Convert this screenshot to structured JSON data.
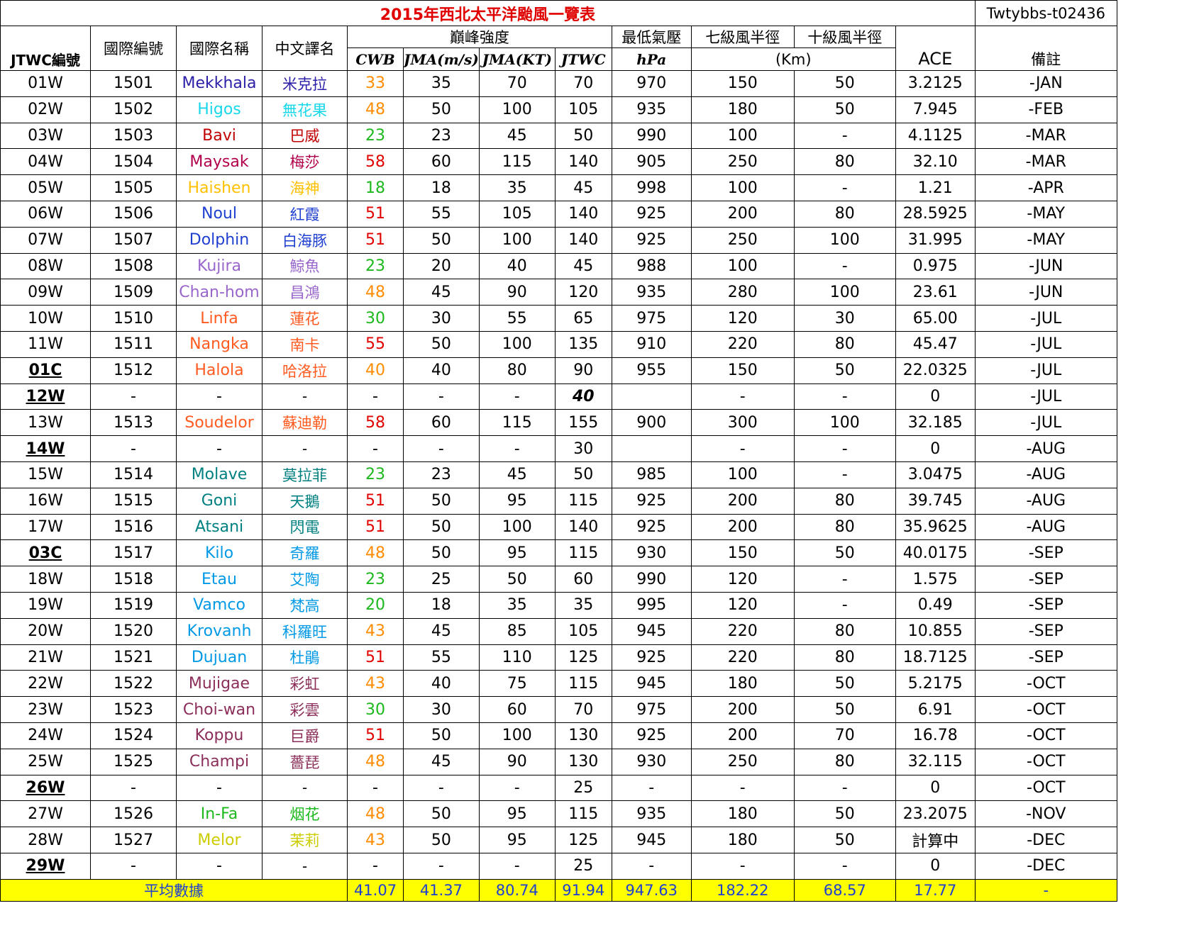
{
  "title": "2015年西北太平洋颱風一覽表",
  "credit": "Twtybbs-t02436",
  "headers": {
    "jtwc_no": "JTWC編號",
    "intl_no": "國際編號",
    "intl_name": "國際名稱",
    "cn_name": "中文譯名",
    "peak": "巔峰強度",
    "cwb": "CWB",
    "jma_ms": "JMA(m/s)",
    "jma_kt": "JMA(KT)",
    "jtwc": "JTWC",
    "min_pressure": "最低氣壓",
    "hpa": "hPa",
    "r7": "七級風半徑",
    "r10": "十級風半徑",
    "km": "(Km)",
    "ace": "ACE",
    "remark": "備註"
  },
  "storms": [
    {
      "jtwc": "01W",
      "intl": "1501",
      "name": "Mekkhala",
      "cn": "米克拉",
      "color": "#2b1fa8",
      "cwb": "33",
      "cwb_color": "#ff8c00",
      "jma_ms": "35",
      "jma_kt": "70",
      "jtwc_kt": "70",
      "hpa": "970",
      "r7": "150",
      "r10": "50",
      "ace": "3.2125",
      "remark": "-JAN",
      "jtwc_bold": false
    },
    {
      "jtwc": "02W",
      "intl": "1502",
      "name": "Higos",
      "cn": "無花果",
      "color": "#17d7e8",
      "cwb": "48",
      "cwb_color": "#ff8c00",
      "jma_ms": "50",
      "jma_kt": "100",
      "jtwc_kt": "105",
      "hpa": "935",
      "r7": "180",
      "r10": "50",
      "ace": "7.945",
      "remark": "-FEB",
      "jtwc_bold": false
    },
    {
      "jtwc": "03W",
      "intl": "1503",
      "name": "Bavi",
      "cn": "巴威",
      "color": "#c00000",
      "cwb": "23",
      "cwb_color": "#1db81d",
      "jma_ms": "23",
      "jma_kt": "45",
      "jtwc_kt": "50",
      "hpa": "990",
      "r7": "100",
      "r10": "-",
      "ace": "4.1125",
      "remark": "-MAR",
      "jtwc_bold": false
    },
    {
      "jtwc": "04W",
      "intl": "1504",
      "name": "Maysak",
      "cn": "梅莎",
      "color": "#b0004b",
      "cwb": "58",
      "cwb_color": "#e00000",
      "jma_ms": "60",
      "jma_kt": "115",
      "jtwc_kt": "140",
      "hpa": "905",
      "r7": "250",
      "r10": "80",
      "ace": "32.10",
      "remark": "-MAR",
      "jtwc_bold": false
    },
    {
      "jtwc": "05W",
      "intl": "1505",
      "name": "Haishen",
      "cn": "海神",
      "color": "#ffc000",
      "cwb": "18",
      "cwb_color": "#1db81d",
      "jma_ms": "18",
      "jma_kt": "35",
      "jtwc_kt": "45",
      "hpa": "998",
      "r7": "100",
      "r10": "-",
      "ace": "1.21",
      "remark": "-APR",
      "jtwc_bold": false
    },
    {
      "jtwc": "06W",
      "intl": "1506",
      "name": "Noul",
      "cn": "紅霞",
      "color": "#1f3fd0",
      "cwb": "51",
      "cwb_color": "#e00000",
      "jma_ms": "55",
      "jma_kt": "105",
      "jtwc_kt": "140",
      "hpa": "925",
      "r7": "200",
      "r10": "80",
      "ace": "28.5925",
      "remark": "-MAY",
      "jtwc_bold": false
    },
    {
      "jtwc": "07W",
      "intl": "1507",
      "name": "Dolphin",
      "cn": "白海豚",
      "color": "#1f3fd0",
      "cwb": "51",
      "cwb_color": "#e00000",
      "jma_ms": "50",
      "jma_kt": "100",
      "jtwc_kt": "140",
      "hpa": "925",
      "r7": "250",
      "r10": "100",
      "ace": "31.995",
      "remark": "-MAY",
      "jtwc_bold": false
    },
    {
      "jtwc": "08W",
      "intl": "1508",
      "name": "Kujira",
      "cn": "鯨魚",
      "color": "#9966cc",
      "cwb": "23",
      "cwb_color": "#1db81d",
      "jma_ms": "20",
      "jma_kt": "40",
      "jtwc_kt": "45",
      "hpa": "988",
      "r7": "100",
      "r10": "-",
      "ace": "0.975",
      "remark": "-JUN",
      "jtwc_bold": false
    },
    {
      "jtwc": "09W",
      "intl": "1509",
      "name": "Chan-hom",
      "cn": "昌鴻",
      "color": "#9966cc",
      "cwb": "48",
      "cwb_color": "#ff8c00",
      "jma_ms": "45",
      "jma_kt": "90",
      "jtwc_kt": "120",
      "hpa": "935",
      "r7": "280",
      "r10": "100",
      "ace": "23.61",
      "remark": "-JUN",
      "jtwc_bold": false
    },
    {
      "jtwc": "10W",
      "intl": "1510",
      "name": "Linfa",
      "cn": "蓮花",
      "color": "#ff5a1f",
      "cwb": "30",
      "cwb_color": "#1db81d",
      "jma_ms": "30",
      "jma_kt": "55",
      "jtwc_kt": "65",
      "hpa": "975",
      "r7": "120",
      "r10": "30",
      "ace": "65.00",
      "remark": "-JUL",
      "jtwc_bold": false
    },
    {
      "jtwc": "11W",
      "intl": "1511",
      "name": "Nangka",
      "cn": "南卡",
      "color": "#ff5a1f",
      "cwb": "55",
      "cwb_color": "#e00000",
      "jma_ms": "50",
      "jma_kt": "100",
      "jtwc_kt": "135",
      "hpa": "910",
      "r7": "220",
      "r10": "80",
      "ace": "45.47",
      "remark": "-JUL",
      "jtwc_bold": false
    },
    {
      "jtwc": "01C",
      "intl": "1512",
      "name": "Halola",
      "cn": "哈洛拉",
      "color": "#ff5a1f",
      "cwb": "40",
      "cwb_color": "#ff8c00",
      "jma_ms": "40",
      "jma_kt": "80",
      "jtwc_kt": "90",
      "hpa": "955",
      "r7": "150",
      "r10": "50",
      "ace": "22.0325",
      "remark": "-JUL",
      "jtwc_bold": true
    },
    {
      "jtwc": "12W",
      "intl": "-",
      "name": "-",
      "cn": "-",
      "color": "#000000",
      "cwb": "-",
      "cwb_color": "#000000",
      "jma_ms": "-",
      "jma_kt": "-",
      "jtwc_kt": "40",
      "jtwc_kt_bold": true,
      "hpa": "",
      "r7": "-",
      "r10": "-",
      "ace": "0",
      "remark": "-JUL",
      "jtwc_bold": true
    },
    {
      "jtwc": "13W",
      "intl": "1513",
      "name": "Soudelor",
      "cn": "蘇迪勒",
      "color": "#ff5a1f",
      "cwb": "58",
      "cwb_color": "#e00000",
      "jma_ms": "60",
      "jma_kt": "115",
      "jtwc_kt": "155",
      "hpa": "900",
      "r7": "300",
      "r10": "100",
      "ace": "32.185",
      "remark": "-JUL",
      "jtwc_bold": false
    },
    {
      "jtwc": "14W",
      "intl": "-",
      "name": "-",
      "cn": "-",
      "color": "#000000",
      "cwb": "-",
      "cwb_color": "#000000",
      "jma_ms": "-",
      "jma_kt": "-",
      "jtwc_kt": "30",
      "hpa": "",
      "r7": "-",
      "r10": "-",
      "ace": "0",
      "remark": "-AUG",
      "jtwc_bold": true
    },
    {
      "jtwc": "15W",
      "intl": "1514",
      "name": "Molave",
      "cn": "莫拉菲",
      "color": "#008080",
      "cwb": "23",
      "cwb_color": "#1db81d",
      "jma_ms": "23",
      "jma_kt": "45",
      "jtwc_kt": "50",
      "hpa": "985",
      "r7": "100",
      "r10": "-",
      "ace": "3.0475",
      "remark": "-AUG",
      "jtwc_bold": false
    },
    {
      "jtwc": "16W",
      "intl": "1515",
      "name": "Goni",
      "cn": "天鵝",
      "color": "#008080",
      "cwb": "51",
      "cwb_color": "#e00000",
      "jma_ms": "50",
      "jma_kt": "95",
      "jtwc_kt": "115",
      "hpa": "925",
      "r7": "200",
      "r10": "80",
      "ace": "39.745",
      "remark": "-AUG",
      "jtwc_bold": false
    },
    {
      "jtwc": "17W",
      "intl": "1516",
      "name": "Atsani",
      "cn": "閃電",
      "color": "#008080",
      "cwb": "51",
      "cwb_color": "#e00000",
      "jma_ms": "50",
      "jma_kt": "100",
      "jtwc_kt": "140",
      "hpa": "925",
      "r7": "200",
      "r10": "80",
      "ace": "35.9625",
      "remark": "-AUG",
      "jtwc_bold": false
    },
    {
      "jtwc": "03C",
      "intl": "1517",
      "name": "Kilo",
      "cn": "奇羅",
      "color": "#0099e6",
      "cwb": "48",
      "cwb_color": "#ff8c00",
      "jma_ms": "50",
      "jma_kt": "95",
      "jtwc_kt": "115",
      "hpa": "930",
      "r7": "150",
      "r10": "50",
      "ace": "40.0175",
      "remark": "-SEP",
      "jtwc_bold": true
    },
    {
      "jtwc": "18W",
      "intl": "1518",
      "name": "Etau",
      "cn": "艾陶",
      "color": "#0099e6",
      "cwb": "23",
      "cwb_color": "#1db81d",
      "jma_ms": "25",
      "jma_kt": "50",
      "jtwc_kt": "60",
      "hpa": "990",
      "r7": "120",
      "r10": "-",
      "ace": "1.575",
      "remark": "-SEP",
      "jtwc_bold": false
    },
    {
      "jtwc": "19W",
      "intl": "1519",
      "name": "Vamco",
      "cn": "梵高",
      "color": "#0099e6",
      "cwb": "20",
      "cwb_color": "#1db81d",
      "jma_ms": "18",
      "jma_kt": "35",
      "jtwc_kt": "35",
      "hpa": "995",
      "r7": "120",
      "r10": "-",
      "ace": "0.49",
      "remark": "-SEP",
      "jtwc_bold": false
    },
    {
      "jtwc": "20W",
      "intl": "1520",
      "name": "Krovanh",
      "cn": "科羅旺",
      "color": "#0099e6",
      "cwb": "43",
      "cwb_color": "#ff8c00",
      "jma_ms": "45",
      "jma_kt": "85",
      "jtwc_kt": "105",
      "hpa": "945",
      "r7": "220",
      "r10": "80",
      "ace": "10.855",
      "remark": "-SEP",
      "jtwc_bold": false
    },
    {
      "jtwc": "21W",
      "intl": "1521",
      "name": "Dujuan",
      "cn": "杜鵑",
      "color": "#0099e6",
      "cwb": "51",
      "cwb_color": "#e00000",
      "jma_ms": "55",
      "jma_kt": "110",
      "jtwc_kt": "125",
      "hpa": "925",
      "r7": "220",
      "r10": "80",
      "ace": "18.7125",
      "remark": "-SEP",
      "jtwc_bold": false
    },
    {
      "jtwc": "22W",
      "intl": "1522",
      "name": "Mujigae",
      "cn": "彩虹",
      "color": "#8b2e5a",
      "cwb": "43",
      "cwb_color": "#ff8c00",
      "jma_ms": "40",
      "jma_kt": "75",
      "jtwc_kt": "115",
      "hpa": "945",
      "r7": "180",
      "r10": "50",
      "ace": "5.2175",
      "remark": "-OCT",
      "jtwc_bold": false
    },
    {
      "jtwc": "23W",
      "intl": "1523",
      "name": "Choi-wan",
      "cn": "彩雲",
      "color": "#8b2e5a",
      "cwb": "30",
      "cwb_color": "#1db81d",
      "jma_ms": "30",
      "jma_kt": "60",
      "jtwc_kt": "70",
      "hpa": "975",
      "r7": "200",
      "r10": "50",
      "ace": "6.91",
      "remark": "-OCT",
      "jtwc_bold": false
    },
    {
      "jtwc": "24W",
      "intl": "1524",
      "name": "Koppu",
      "cn": "巨爵",
      "color": "#8b2e5a",
      "cwb": "51",
      "cwb_color": "#e00000",
      "jma_ms": "50",
      "jma_kt": "100",
      "jtwc_kt": "130",
      "hpa": "925",
      "r7": "200",
      "r10": "70",
      "ace": "16.78",
      "remark": "-OCT",
      "jtwc_bold": false
    },
    {
      "jtwc": "25W",
      "intl": "1525",
      "name": "Champi",
      "cn": "薔琵",
      "color": "#8b2e5a",
      "cwb": "48",
      "cwb_color": "#ff8c00",
      "jma_ms": "45",
      "jma_kt": "90",
      "jtwc_kt": "130",
      "hpa": "930",
      "r7": "250",
      "r10": "80",
      "ace": "32.115",
      "remark": "-OCT",
      "jtwc_bold": false
    },
    {
      "jtwc": "26W",
      "intl": "-",
      "name": "-",
      "cn": "-",
      "color": "#000000",
      "cwb": "-",
      "cwb_color": "#000000",
      "jma_ms": "-",
      "jma_kt": "-",
      "jtwc_kt": "25",
      "hpa": "-",
      "r7": "-",
      "r10": "-",
      "ace": "0",
      "remark": "-OCT",
      "jtwc_bold": true
    },
    {
      "jtwc": "27W",
      "intl": "1526",
      "name": "In-Fa",
      "cn": "烟花",
      "color": "#1db81d",
      "cwb": "48",
      "cwb_color": "#ff8c00",
      "jma_ms": "50",
      "jma_kt": "95",
      "jtwc_kt": "115",
      "hpa": "935",
      "r7": "180",
      "r10": "50",
      "ace": "23.2075",
      "remark": "-NOV",
      "jtwc_bold": false
    },
    {
      "jtwc": "28W",
      "intl": "1527",
      "name": "Melor",
      "cn": "茉莉",
      "color": "#cccc00",
      "cwb": "43",
      "cwb_color": "#ff8c00",
      "jma_ms": "50",
      "jma_kt": "95",
      "jtwc_kt": "125",
      "hpa": "945",
      "r7": "180",
      "r10": "50",
      "ace": "計算中",
      "remark": "-DEC",
      "jtwc_bold": false
    },
    {
      "jtwc": "29W",
      "intl": "-",
      "name": "-",
      "cn": "-",
      "color": "#000000",
      "cwb": "-",
      "cwb_color": "#000000",
      "jma_ms": "-",
      "jma_kt": "-",
      "jtwc_kt": "25",
      "hpa": "-",
      "r7": "-",
      "r10": "-",
      "ace": "0",
      "remark": "-DEC",
      "jtwc_bold": true
    }
  ],
  "average": {
    "label": "平均數據",
    "cwb": "41.07",
    "jma_ms": "41.37",
    "jma_kt": "80.74",
    "jtwc": "91.94",
    "hpa": "947.63",
    "r7": "182.22",
    "r10": "68.57",
    "ace": "17.77",
    "remark": "-"
  }
}
